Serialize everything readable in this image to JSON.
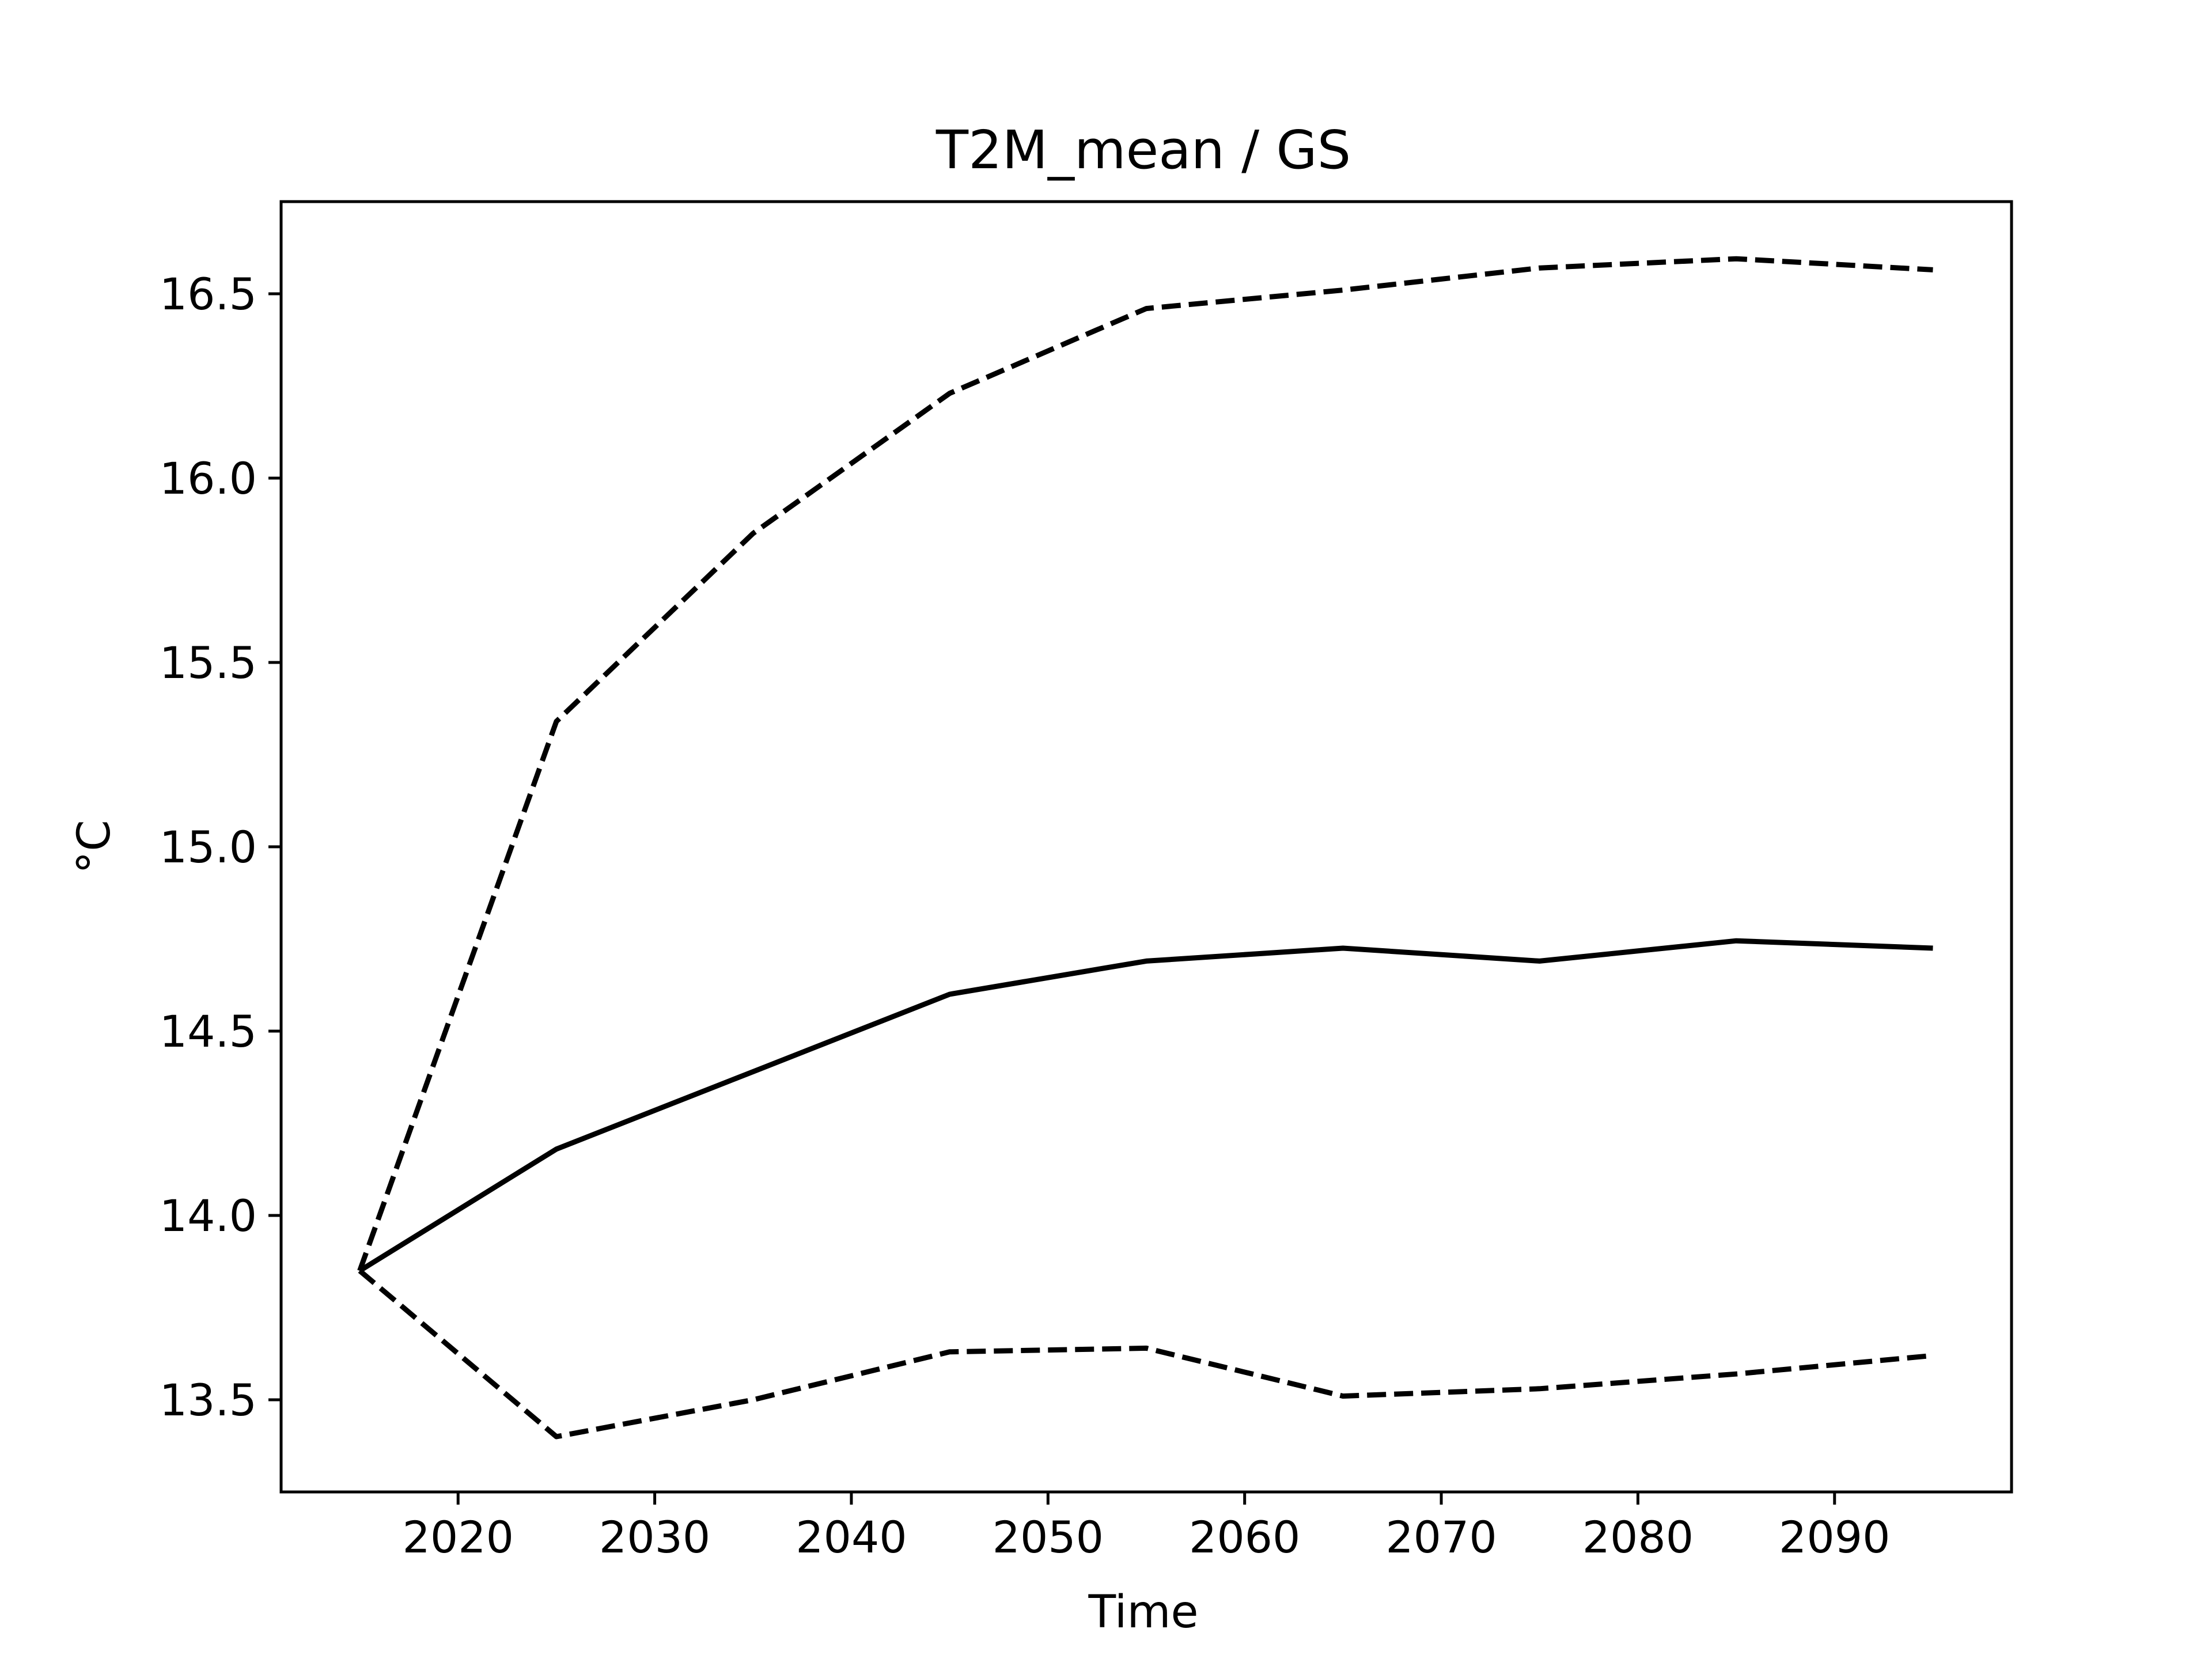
{
  "chart_data": {
    "type": "line",
    "title": "T2M_mean / GS",
    "xlabel": "Time",
    "ylabel": "°C",
    "xlim": [
      2011,
      2099
    ],
    "ylim": [
      13.25,
      16.75
    ],
    "x_ticks": [
      2020,
      2030,
      2040,
      2050,
      2060,
      2070,
      2080,
      2090
    ],
    "y_ticks": [
      13.5,
      14.0,
      14.5,
      15.0,
      15.5,
      16.0,
      16.5
    ],
    "y_tick_labels": [
      "13.5",
      "14.0",
      "14.5",
      "15.0",
      "15.5",
      "16.0",
      "16.5"
    ],
    "grid": false,
    "legend": "none",
    "x": [
      2015,
      2025,
      2035,
      2045,
      2055,
      2065,
      2075,
      2085,
      2095
    ],
    "series": [
      {
        "style": "dashed",
        "color": "#000000",
        "values": [
          13.85,
          15.34,
          15.85,
          16.23,
          16.46,
          16.51,
          16.57,
          16.595,
          16.565
        ]
      },
      {
        "style": "solid",
        "color": "#000000",
        "values": [
          13.85,
          14.18,
          14.39,
          14.6,
          14.69,
          14.725,
          14.69,
          14.745,
          14.725
        ]
      },
      {
        "style": "dashed",
        "color": "#000000",
        "values": [
          13.85,
          13.4,
          13.5,
          13.63,
          13.64,
          13.51,
          13.53,
          13.57,
          13.62
        ]
      }
    ]
  }
}
